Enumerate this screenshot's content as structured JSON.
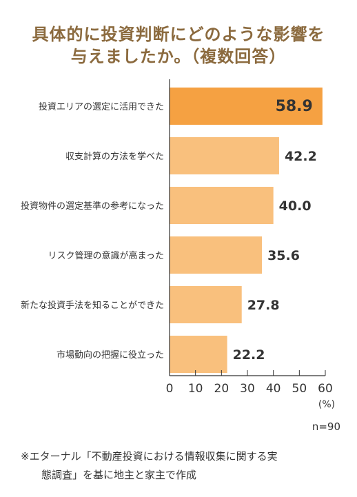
{
  "title_line1": "具体的に投資判断にどのような影響を",
  "title_line2": "与えましたか。（複数回答）",
  "n_label": "n=90",
  "footnote_line1": "※エターナル「不動産投資における情報収集に関する実",
  "footnote_line2": "態調査」を基に地主と家主で作成",
  "colors": {
    "highlight": "#f5a142",
    "bar": "#f9c07d",
    "title": "#8b6a3e",
    "axis": "#333333"
  },
  "chart_data": {
    "type": "bar",
    "orientation": "horizontal",
    "title": "具体的に投資判断にどのような影響を与えましたか。（複数回答）",
    "categories": [
      "投資エリアの選定に活用できた",
      "収支計算の方法を学べた",
      "投資物件の選定基準の参考になった",
      "リスク管理の意識が高まった",
      "新たな投資手法を知ることができた",
      "市場動向の把握に役立った"
    ],
    "values": [
      58.9,
      42.2,
      40.0,
      35.6,
      27.8,
      22.2
    ],
    "value_labels": [
      "58.9",
      "42.2",
      "40.0",
      "35.6",
      "27.8",
      "22.2"
    ],
    "xlim": [
      0,
      60
    ],
    "xticks": [
      "0",
      "10",
      "20",
      "30",
      "40",
      "50",
      "60"
    ],
    "xunit": "(%)",
    "highlight_index": 0,
    "grid": false
  }
}
